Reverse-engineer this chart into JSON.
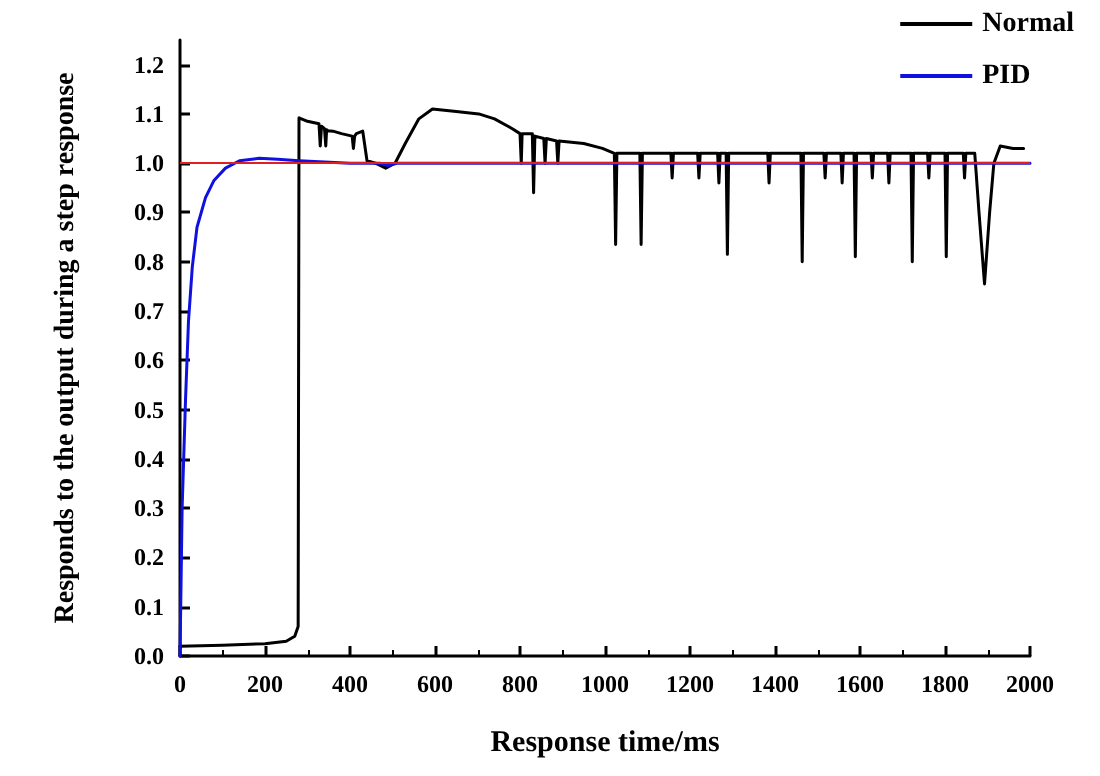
{
  "chart_data": {
    "type": "line",
    "xlabel": "Response time/ms",
    "ylabel": "Responds to the output during a step response",
    "xlim": [
      0,
      2000
    ],
    "xticks": [
      0,
      200,
      400,
      600,
      800,
      1000,
      1200,
      1400,
      1600,
      1800,
      2000
    ],
    "ylim": [
      0,
      1.25
    ],
    "yticks": [
      {
        "value": 0,
        "label": "0.0"
      },
      {
        "value": 0.1,
        "label": "0.1"
      },
      {
        "value": 0.2,
        "label": "0.2"
      },
      {
        "value": 0.3,
        "label": "0.3"
      },
      {
        "value": 0.4,
        "label": "0.4"
      },
      {
        "value": 0.5,
        "label": "0.5"
      },
      {
        "value": 0.6,
        "label": "0.6"
      },
      {
        "value": 0.7,
        "label": "0.7"
      },
      {
        "value": 0.8,
        "label": "0.8"
      },
      {
        "value": 0.9,
        "label": "0.9"
      },
      {
        "value": 1,
        "label": "1.0"
      },
      {
        "value": 1.1,
        "label": "1.1"
      },
      {
        "value": 1.2,
        "label": "1.2"
      }
    ],
    "grid": false,
    "legend": "top right",
    "marker": "none",
    "line_style": "solid",
    "ref_lines": [
      {
        "axis": "y",
        "value": 1,
        "label": null,
        "color": "#e02020"
      }
    ],
    "series": [
      {
        "name": "Normal",
        "color": "#000000",
        "x": [
          0,
          100,
          200,
          250,
          270,
          278,
          280,
          300,
          327,
          330,
          333,
          340,
          343,
          345,
          348,
          360,
          380,
          405,
          408,
          411,
          415,
          430,
          440,
          460,
          484,
          506,
          530,
          562,
          594,
          650,
          703,
          740,
          782,
          800,
          803,
          805,
          807,
          829,
          832,
          835,
          856,
          859,
          862,
          886,
          889,
          892,
          950,
          994,
          1022,
          1025,
          1028,
          1082,
          1085,
          1088,
          1155,
          1158,
          1161,
          1218,
          1221,
          1224,
          1265,
          1268,
          1271,
          1285,
          1288,
          1291,
          1383,
          1386,
          1389,
          1461,
          1464,
          1467,
          1515,
          1518,
          1521,
          1555,
          1558,
          1561,
          1586,
          1589,
          1592,
          1626,
          1629,
          1632,
          1665,
          1668,
          1671,
          1720,
          1723,
          1726,
          1759,
          1762,
          1765,
          1800,
          1803,
          1806,
          1843,
          1846,
          1849,
          1870,
          1880,
          1893,
          1905,
          1915,
          1930,
          1960,
          1985
        ],
        "values": [
          0.02,
          0.022,
          0.025,
          0.03,
          0.04,
          0.06,
          1.092,
          1.085,
          1.08,
          1.035,
          1.075,
          1.07,
          1.035,
          1.068,
          1.066,
          1.065,
          1.06,
          1.055,
          1.03,
          1.055,
          1.06,
          1.065,
          1.005,
          1.0,
          0.99,
          1.0,
          1.04,
          1.09,
          1.11,
          1.105,
          1.1,
          1.09,
          1.07,
          1.06,
          1.0,
          1.06,
          1.06,
          1.06,
          0.94,
          1.055,
          1.05,
          1.0,
          1.05,
          1.045,
          1.0,
          1.045,
          1.04,
          1.03,
          1.02,
          0.835,
          1.02,
          1.02,
          0.835,
          1.02,
          1.02,
          0.97,
          1.02,
          1.02,
          0.97,
          1.02,
          1.02,
          0.96,
          1.02,
          1.02,
          0.815,
          1.02,
          1.02,
          0.96,
          1.02,
          1.02,
          0.8,
          1.02,
          1.02,
          0.97,
          1.02,
          1.02,
          0.96,
          1.02,
          1.02,
          0.81,
          1.02,
          1.02,
          0.97,
          1.02,
          1.02,
          0.96,
          1.02,
          1.02,
          0.8,
          1.02,
          1.02,
          0.97,
          1.02,
          1.02,
          0.81,
          1.02,
          1.02,
          0.97,
          1.02,
          1.02,
          0.9,
          0.755,
          0.9,
          1.0,
          1.035,
          1.03,
          1.03
        ]
      },
      {
        "name": "PID",
        "color": "#1010e0",
        "x": [
          0,
          5,
          13,
          20,
          29,
          40,
          60,
          80,
          107,
          140,
          186,
          230,
          280,
          400,
          470,
          490,
          510,
          600,
          2000
        ],
        "values": [
          0,
          0.3,
          0.52,
          0.68,
          0.79,
          0.87,
          0.93,
          0.965,
          0.99,
          1.005,
          1.01,
          1.008,
          1.005,
          1.0,
          1.0,
          0.995,
          1.0,
          1.0,
          1.0
        ]
      }
    ]
  }
}
